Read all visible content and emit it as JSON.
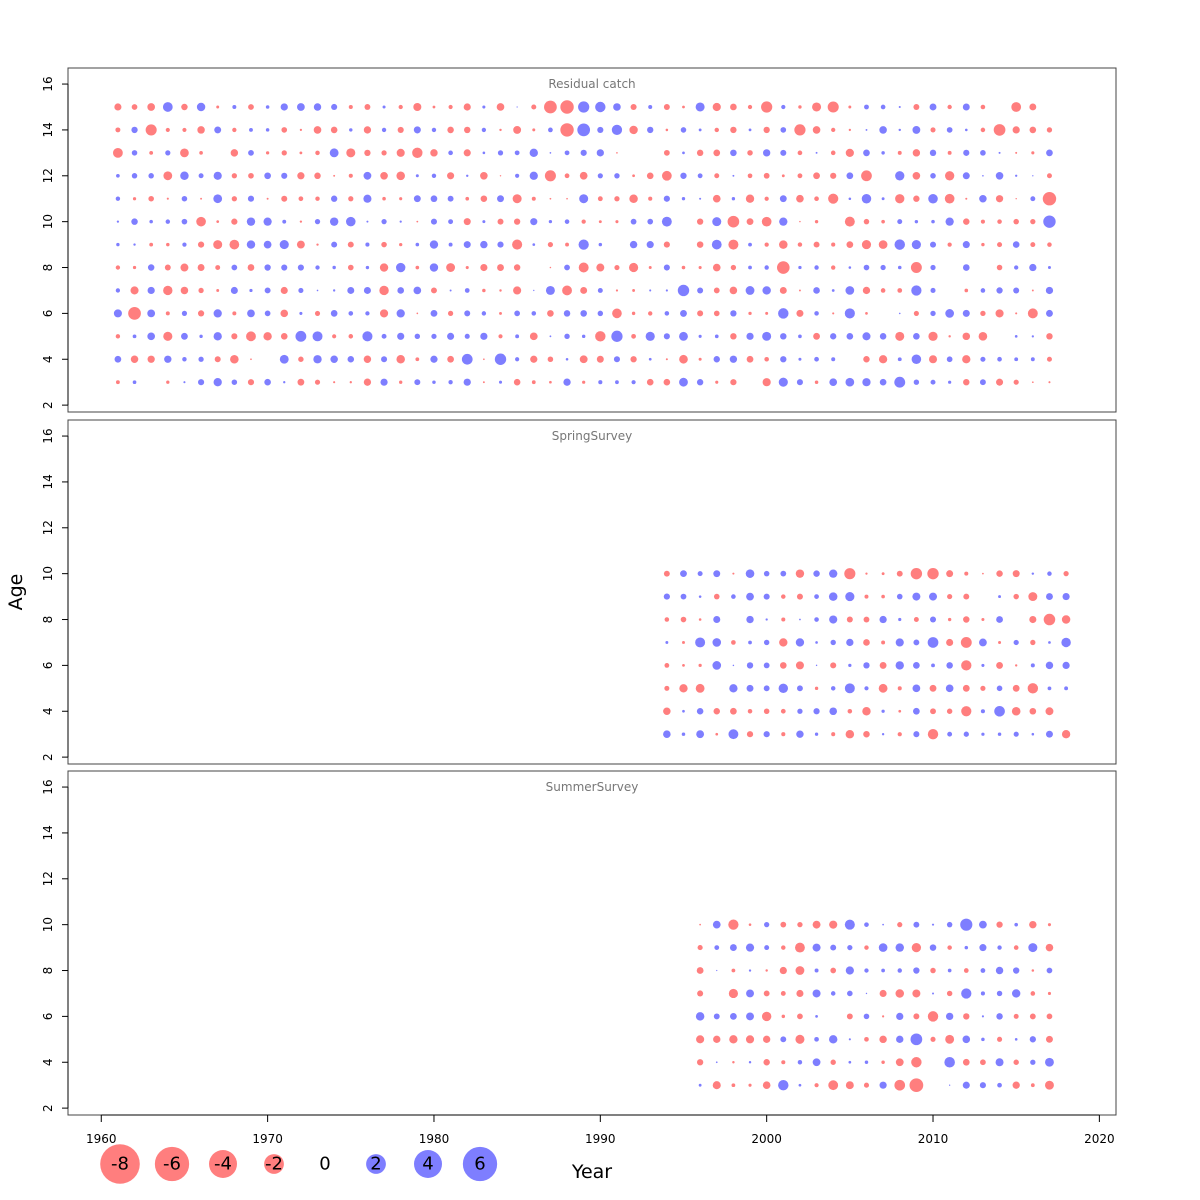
{
  "chart_data": {
    "type": "scatter",
    "title": "",
    "xlabel": "Year",
    "ylabel": "Age",
    "xlim": [
      1958,
      2021
    ],
    "ylim": [
      1.7,
      16.7
    ],
    "x_ticks": [
      1960,
      1970,
      1980,
      1990,
      2000,
      2010,
      2020
    ],
    "y_ticks": [
      2,
      4,
      6,
      8,
      10,
      12,
      14,
      16
    ],
    "colors": {
      "positive": "#5a5aff",
      "negative": "#ff5a5a",
      "frame": "#444444"
    },
    "legend": {
      "placement": "bottom-left",
      "values": [
        -8,
        -6,
        -4,
        -2,
        0,
        2,
        4,
        6
      ],
      "labels": [
        "-8",
        "-6",
        "-4",
        "-2",
        "0",
        "2",
        "4",
        "6"
      ]
    },
    "panels": [
      {
        "title": "Residual catch",
        "years": [
          1961,
          2017
        ],
        "ages": [
          3,
          4,
          5,
          6,
          7,
          8,
          9,
          10,
          11,
          12,
          13,
          14,
          15
        ]
      },
      {
        "title": "SpringSurvey",
        "years": [
          1994,
          2018
        ],
        "ages": [
          3,
          4,
          5,
          6,
          7,
          8,
          9,
          10
        ]
      },
      {
        "title": "SummerSurvey",
        "years": [
          1996,
          2017
        ],
        "ages": [
          3,
          4,
          5,
          6,
          7,
          8,
          9,
          10
        ]
      }
    ],
    "notable_residuals": [
      {
        "panel": "Residual catch",
        "year": 1962,
        "age": 6,
        "value": -4.5
      },
      {
        "panel": "Residual catch",
        "year": 1988,
        "age": 15,
        "value": -5
      },
      {
        "panel": "Residual catch",
        "year": 1988,
        "age": 14,
        "value": -5
      },
      {
        "panel": "Residual catch",
        "year": 1989,
        "age": 14,
        "value": 4.5
      },
      {
        "panel": "Residual catch",
        "year": 1989,
        "age": 15,
        "value": 3.5
      },
      {
        "panel": "Residual catch",
        "year": 2000,
        "age": 15,
        "value": -3.5
      },
      {
        "panel": "Residual catch",
        "year": 2002,
        "age": 14,
        "value": -3.5
      },
      {
        "panel": "Residual catch",
        "year": 2014,
        "age": 14,
        "value": -3.8
      },
      {
        "panel": "Residual catch",
        "year": 2017,
        "age": 11,
        "value": -5
      },
      {
        "panel": "Residual catch",
        "year": 1982,
        "age": 4,
        "value": 3.2
      },
      {
        "panel": "Residual catch",
        "year": 1984,
        "age": 4,
        "value": 3.6
      },
      {
        "panel": "Residual catch",
        "year": 2008,
        "age": 3,
        "value": 3.3
      },
      {
        "panel": "Residual catch",
        "year": 1987,
        "age": 12,
        "value": -3.4
      },
      {
        "panel": "Residual catch",
        "year": 2006,
        "age": 12,
        "value": -3.2
      },
      {
        "panel": "SpringSurvey",
        "year": 2009,
        "age": 10,
        "value": -3.6
      },
      {
        "panel": "SpringSurvey",
        "year": 2010,
        "age": 10,
        "value": -3.6
      },
      {
        "panel": "SpringSurvey",
        "year": 2010,
        "age": 3,
        "value": -3
      },
      {
        "panel": "SpringSurvey",
        "year": 2016,
        "age": 5,
        "value": -3
      },
      {
        "panel": "SpringSurvey",
        "year": 1998,
        "age": 3,
        "value": 2.7
      },
      {
        "panel": "SummerSurvey",
        "year": 2009,
        "age": 5,
        "value": 3.8
      },
      {
        "panel": "SummerSurvey",
        "year": 2009,
        "age": 4,
        "value": -3
      },
      {
        "panel": "SummerSurvey",
        "year": 2001,
        "age": 3,
        "value": 3
      },
      {
        "panel": "SummerSurvey",
        "year": 2005,
        "age": 10,
        "value": 2.8
      }
    ]
  }
}
